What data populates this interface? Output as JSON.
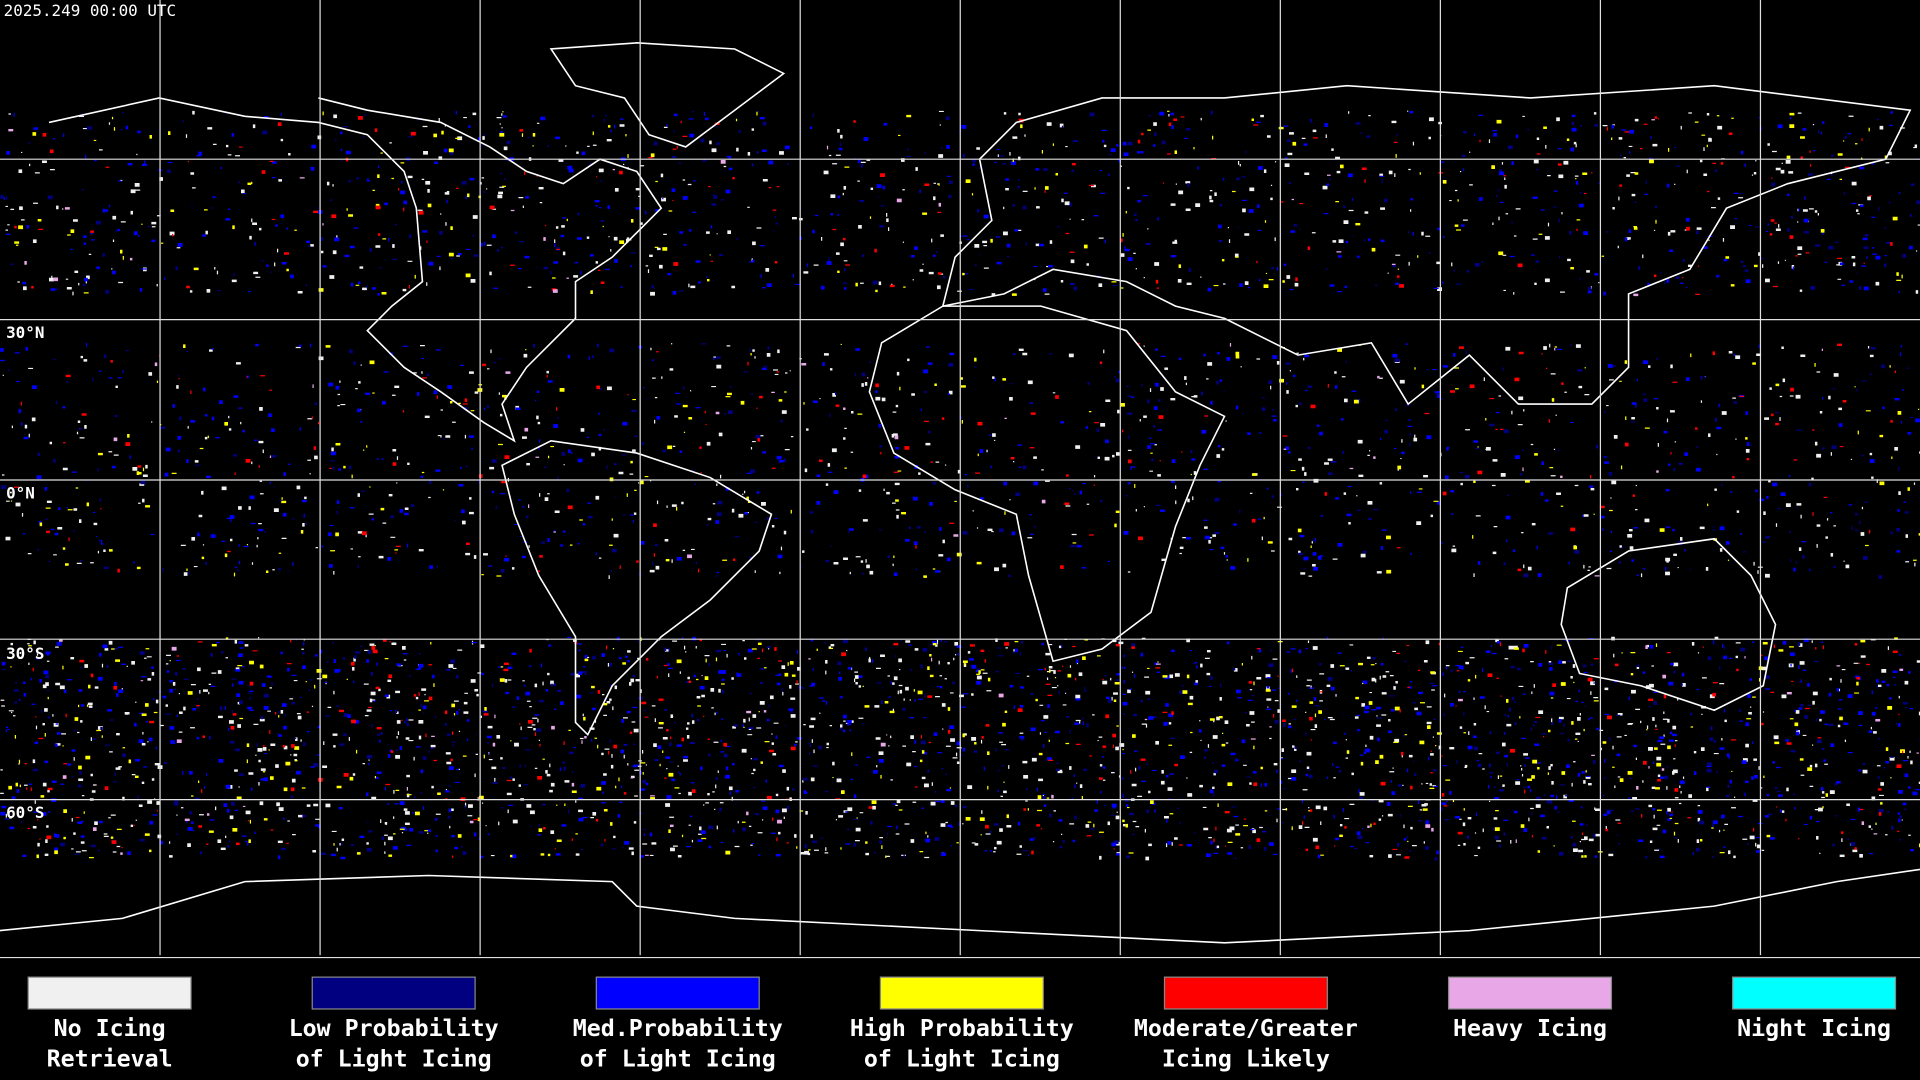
{
  "header": {
    "timestamp": "2025.249 00:00 UTC"
  },
  "map": {
    "latitude_labels": [
      "30°N",
      "0°N",
      "30°S",
      "60°S"
    ]
  },
  "legend": {
    "items": [
      {
        "lines": [
          "No Icing",
          "Retrieval"
        ],
        "color": "#f0f0f0"
      },
      {
        "lines": [
          "Low Probability",
          "of Light Icing"
        ],
        "color": "#000080"
      },
      {
        "lines": [
          "Med.Probability",
          "of Light Icing"
        ],
        "color": "#0000ff"
      },
      {
        "lines": [
          "High Probability",
          "of Light Icing"
        ],
        "color": "#ffff00"
      },
      {
        "lines": [
          "Moderate/Greater",
          "Icing Likely"
        ],
        "color": "#ff0000"
      },
      {
        "lines": [
          "Heavy Icing"
        ],
        "color": "#e8a8e8"
      },
      {
        "lines": [
          "Night Icing"
        ],
        "color": "#00ffff"
      }
    ]
  }
}
